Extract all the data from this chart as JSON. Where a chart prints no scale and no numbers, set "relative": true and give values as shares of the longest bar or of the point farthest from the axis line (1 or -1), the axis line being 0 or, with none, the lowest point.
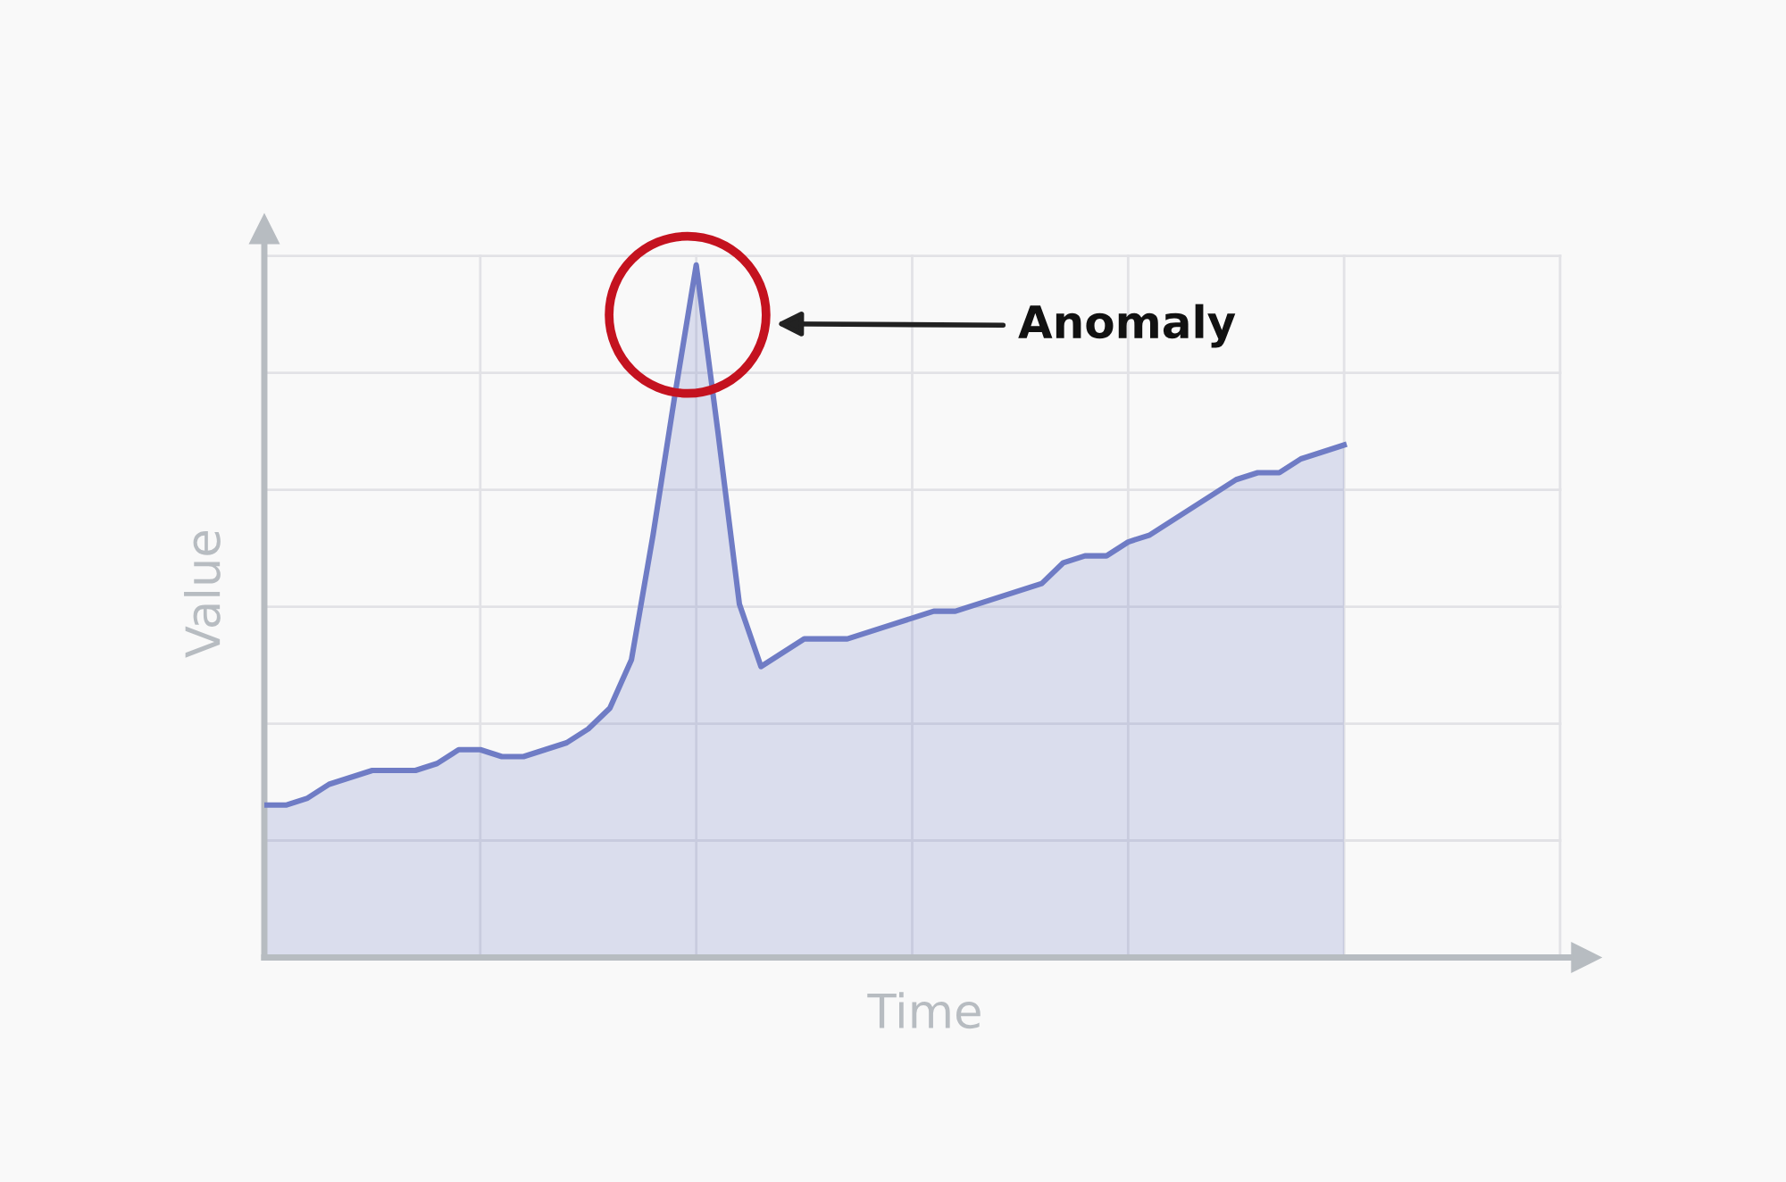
{
  "chart_data": {
    "type": "area",
    "relative": true,
    "xlabel": "Time",
    "ylabel": "Value",
    "grid": true,
    "categories": [
      null,
      null,
      null,
      null,
      null,
      null,
      null,
      null,
      null,
      null,
      null,
      null,
      null,
      null,
      null,
      null,
      null,
      null,
      null,
      null,
      null,
      null,
      null,
      null,
      null,
      null,
      null,
      null,
      null,
      null,
      null,
      null,
      null,
      null,
      null,
      null,
      null,
      null,
      null,
      null,
      null,
      null,
      null,
      null,
      null,
      null,
      null,
      null,
      null,
      null,
      null,
      null,
      null,
      null,
      null,
      null,
      null,
      null,
      null,
      null,
      null
    ],
    "series": [
      {
        "color": "#6f7cc5",
        "values": [
          0.22,
          0.22,
          0.23,
          0.25,
          0.26,
          0.27,
          0.27,
          0.27,
          0.28,
          0.3,
          0.3,
          0.29,
          0.29,
          0.3,
          0.31,
          0.33,
          0.36,
          0.43,
          0.61,
          0.81,
          1,
          0.76,
          0.51,
          0.42,
          0.44,
          0.46,
          0.46,
          0.46,
          0.47,
          0.48,
          0.49,
          0.5,
          0.5,
          0.51,
          0.52,
          0.53,
          0.54,
          0.57,
          0.58,
          0.58,
          0.6,
          0.61,
          0.63,
          0.65,
          0.67,
          0.69,
          0.7,
          0.7,
          0.72,
          0.73,
          0.74,
          null,
          null,
          null,
          null,
          null,
          null,
          null,
          null,
          null,
          null
        ]
      }
    ],
    "annotations": [
      "Anomaly"
    ]
  }
}
